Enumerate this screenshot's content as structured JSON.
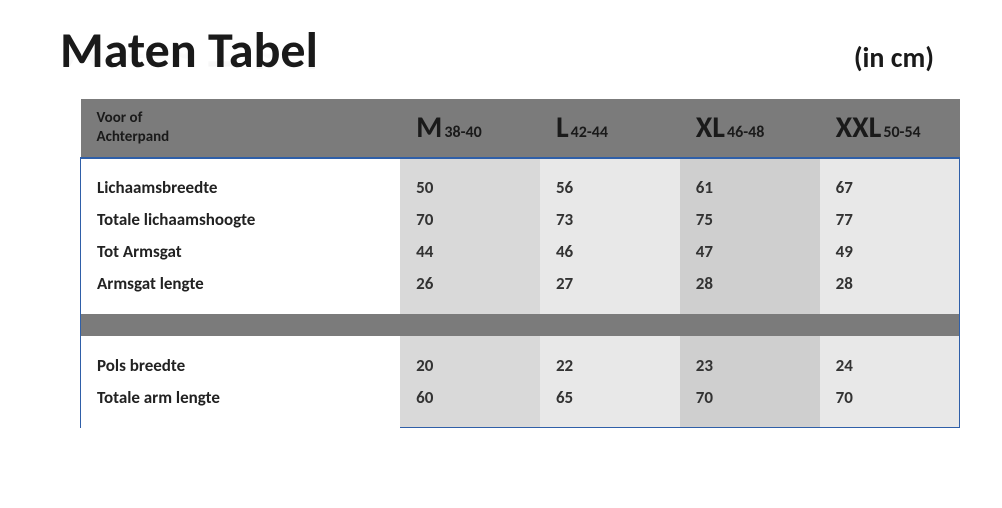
{
  "title": "Maten Tabel",
  "unit_label": "(in cm)",
  "header": {
    "row_label_line1": "Voor of",
    "row_label_line2": "Achterpand",
    "columns": [
      {
        "main": "M",
        "sub": "38-40"
      },
      {
        "main": "L",
        "sub": "42-44"
      },
      {
        "main": "XL",
        "sub": "46-48"
      },
      {
        "main": "XXL",
        "sub": "50-54"
      }
    ]
  },
  "sections": [
    {
      "rows": [
        {
          "label": "Lichaamsbreedte",
          "values": [
            "50",
            "56",
            "61",
            "67"
          ]
        },
        {
          "label": "Totale lichaamshoogte",
          "values": [
            "70",
            "73",
            "75",
            "77"
          ]
        },
        {
          "label": "Tot Armsgat",
          "values": [
            "44",
            "46",
            "47",
            "49"
          ]
        },
        {
          "label": "Armsgat lengte",
          "values": [
            "26",
            "27",
            "28",
            "28"
          ]
        }
      ]
    },
    {
      "rows": [
        {
          "label": "Pols breedte",
          "values": [
            "20",
            "22",
            "23",
            "24"
          ]
        },
        {
          "label": "Totale arm lengte",
          "values": [
            "60",
            "65",
            "70",
            "70"
          ]
        }
      ]
    }
  ],
  "style": {
    "header_bg": "#7b7b7b",
    "accent_border": "#2f5fa8",
    "col_bgs": [
      "#d9d9d9",
      "#e8e8e8",
      "#cfcfcf",
      "#e8e8e8"
    ],
    "title_fontsize": 50,
    "unit_fontsize": 28,
    "body_fontsize": 17,
    "size_main_fontsize": 30,
    "size_sub_fontsize": 16
  }
}
